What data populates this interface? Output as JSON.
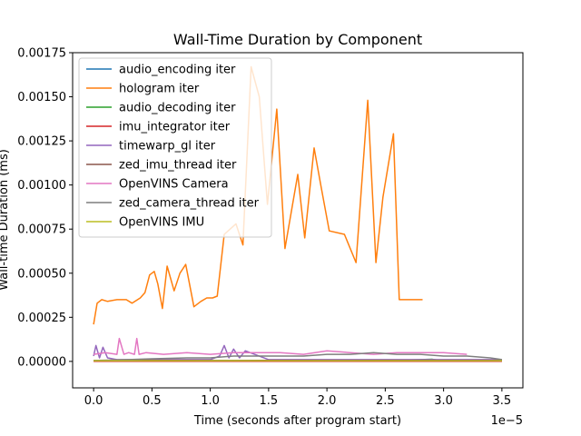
{
  "chart_data": {
    "type": "line",
    "title": "Wall-Time Duration by Component",
    "xlabel": "Time (seconds after program start)",
    "ylabel": "Wall-time Duration (ms)",
    "x_offset_label": "1e−5",
    "xlim": [
      -0.18,
      3.68
    ],
    "ylim": [
      -0.00015,
      0.00175
    ],
    "x_ticks": [
      0.0,
      0.5,
      1.0,
      1.5,
      2.0,
      2.5,
      3.0,
      3.5
    ],
    "x_tick_labels": [
      "0.0",
      "0.5",
      "1.0",
      "1.5",
      "2.0",
      "2.5",
      "3.0",
      "3.5"
    ],
    "y_ticks": [
      0,
      0.00025,
      0.0005,
      0.00075,
      0.001,
      0.00125,
      0.0015,
      0.00175
    ],
    "y_tick_labels": [
      "0.00000",
      "0.00025",
      "0.00050",
      "0.00075",
      "0.00100",
      "0.00125",
      "0.00150",
      "0.00175"
    ],
    "legend_position": "upper-left",
    "grid": false,
    "series": [
      {
        "name": "audio_encoding iter",
        "color": "#1f77b4",
        "x": [
          0.0,
          0.5,
          1.0,
          1.5,
          2.0,
          2.5,
          3.0,
          3.5
        ],
        "y": [
          2e-06,
          2e-06,
          2e-06,
          2e-06,
          2e-06,
          2e-06,
          2e-06,
          2e-06
        ]
      },
      {
        "name": "hologram iter",
        "color": "#ff7f0e",
        "x": [
          0.0,
          0.03,
          0.07,
          0.12,
          0.2,
          0.28,
          0.33,
          0.4,
          0.44,
          0.48,
          0.52,
          0.55,
          0.59,
          0.63,
          0.69,
          0.74,
          0.79,
          0.86,
          0.92,
          0.97,
          1.02,
          1.06,
          1.12,
          1.17,
          1.22,
          1.28,
          1.35,
          1.42,
          1.49,
          1.57,
          1.64,
          1.75,
          1.81,
          1.89,
          1.95,
          2.02,
          2.15,
          2.25,
          2.35,
          2.42,
          2.48,
          2.57,
          2.62,
          2.68,
          2.75,
          2.82
        ],
        "y": [
          0.00021,
          0.00033,
          0.00035,
          0.00034,
          0.00035,
          0.00035,
          0.00033,
          0.00036,
          0.00039,
          0.00049,
          0.00051,
          0.00044,
          0.0003,
          0.00054,
          0.0004,
          0.0005,
          0.00055,
          0.00031,
          0.00034,
          0.00036,
          0.00036,
          0.00037,
          0.00072,
          0.00075,
          0.00078,
          0.00066,
          0.00167,
          0.0015,
          0.00089,
          0.00143,
          0.00064,
          0.00106,
          0.0007,
          0.00121,
          0.00099,
          0.00074,
          0.00072,
          0.00056,
          0.00148,
          0.00056,
          0.00093,
          0.00129,
          0.00035,
          0.00035,
          0.00035,
          0.00035
        ]
      },
      {
        "name": "audio_decoding iter",
        "color": "#2ca02c",
        "x": [
          0.0,
          0.5,
          1.0,
          1.5,
          2.0,
          2.5,
          2.9,
          3.0,
          3.5
        ],
        "y": [
          3e-06,
          3e-06,
          4e-06,
          3e-06,
          3e-06,
          4e-06,
          1.2e-05,
          3e-06,
          3e-06
        ]
      },
      {
        "name": "imu_integrator iter",
        "color": "#d62728",
        "x": [
          0.0,
          0.5,
          1.0,
          1.5,
          2.0,
          2.5,
          3.0,
          3.5
        ],
        "y": [
          1e-06,
          1e-06,
          1e-06,
          1e-06,
          1e-06,
          1e-06,
          1e-06,
          1e-06
        ]
      },
      {
        "name": "timewarp_gl iter",
        "color": "#9467bd",
        "x": [
          0.0,
          0.02,
          0.05,
          0.08,
          0.12,
          0.2,
          0.4,
          0.6,
          0.8,
          1.0,
          1.08,
          1.12,
          1.16,
          1.2,
          1.25,
          1.3,
          1.5,
          2.0,
          2.5,
          3.0,
          3.5
        ],
        "y": [
          3e-05,
          9e-05,
          2e-05,
          8e-05,
          2e-05,
          1e-05,
          1e-05,
          1e-05,
          1e-05,
          1e-05,
          3e-05,
          9e-05,
          2e-05,
          7e-05,
          2e-05,
          6e-05,
          1e-05,
          1e-05,
          1e-05,
          1e-05,
          1e-05
        ]
      },
      {
        "name": "zed_imu_thread iter",
        "color": "#8c564b",
        "x": [
          0.0,
          0.5,
          1.0,
          1.5,
          2.0,
          2.5,
          3.0,
          3.5
        ],
        "y": [
          5e-06,
          6e-06,
          5e-06,
          6e-06,
          5e-06,
          6e-06,
          5e-06,
          5e-06
        ]
      },
      {
        "name": "OpenVINS Camera",
        "color": "#e377c2",
        "x": [
          0.0,
          0.1,
          0.2,
          0.22,
          0.26,
          0.3,
          0.35,
          0.37,
          0.39,
          0.45,
          0.6,
          0.8,
          1.0,
          1.2,
          1.4,
          1.6,
          1.8,
          2.0,
          2.2,
          2.4,
          2.6,
          2.8,
          3.0,
          3.2
        ],
        "y": [
          4e-05,
          5e-05,
          4e-05,
          0.00013,
          4e-05,
          5e-05,
          4e-05,
          0.00013,
          4e-05,
          5e-05,
          4e-05,
          5e-05,
          4e-05,
          5e-05,
          5e-05,
          5e-05,
          4e-05,
          6e-05,
          5e-05,
          4e-05,
          5e-05,
          5e-05,
          5e-05,
          4e-05
        ]
      },
      {
        "name": "zed_camera_thread iter",
        "color": "#7f7f7f",
        "x": [
          0.0,
          0.3,
          0.5,
          0.8,
          1.0,
          1.2,
          1.5,
          1.8,
          2.0,
          2.2,
          2.4,
          2.6,
          2.8,
          3.0,
          3.2,
          3.4,
          3.5
        ],
        "y": [
          5e-06,
          1e-05,
          1.5e-05,
          2e-05,
          2e-05,
          3e-05,
          3e-05,
          3e-05,
          4e-05,
          4e-05,
          5e-05,
          4e-05,
          4e-05,
          3e-05,
          3e-05,
          2e-05,
          1e-05
        ]
      },
      {
        "name": "OpenVINS IMU",
        "color": "#bcbd22",
        "x": [
          0.0,
          0.5,
          1.0,
          1.5,
          2.0,
          2.5,
          3.0,
          3.5
        ],
        "y": [
          4e-06,
          4e-06,
          4e-06,
          4e-06,
          4e-06,
          4e-06,
          4e-06,
          4e-06
        ]
      }
    ]
  }
}
